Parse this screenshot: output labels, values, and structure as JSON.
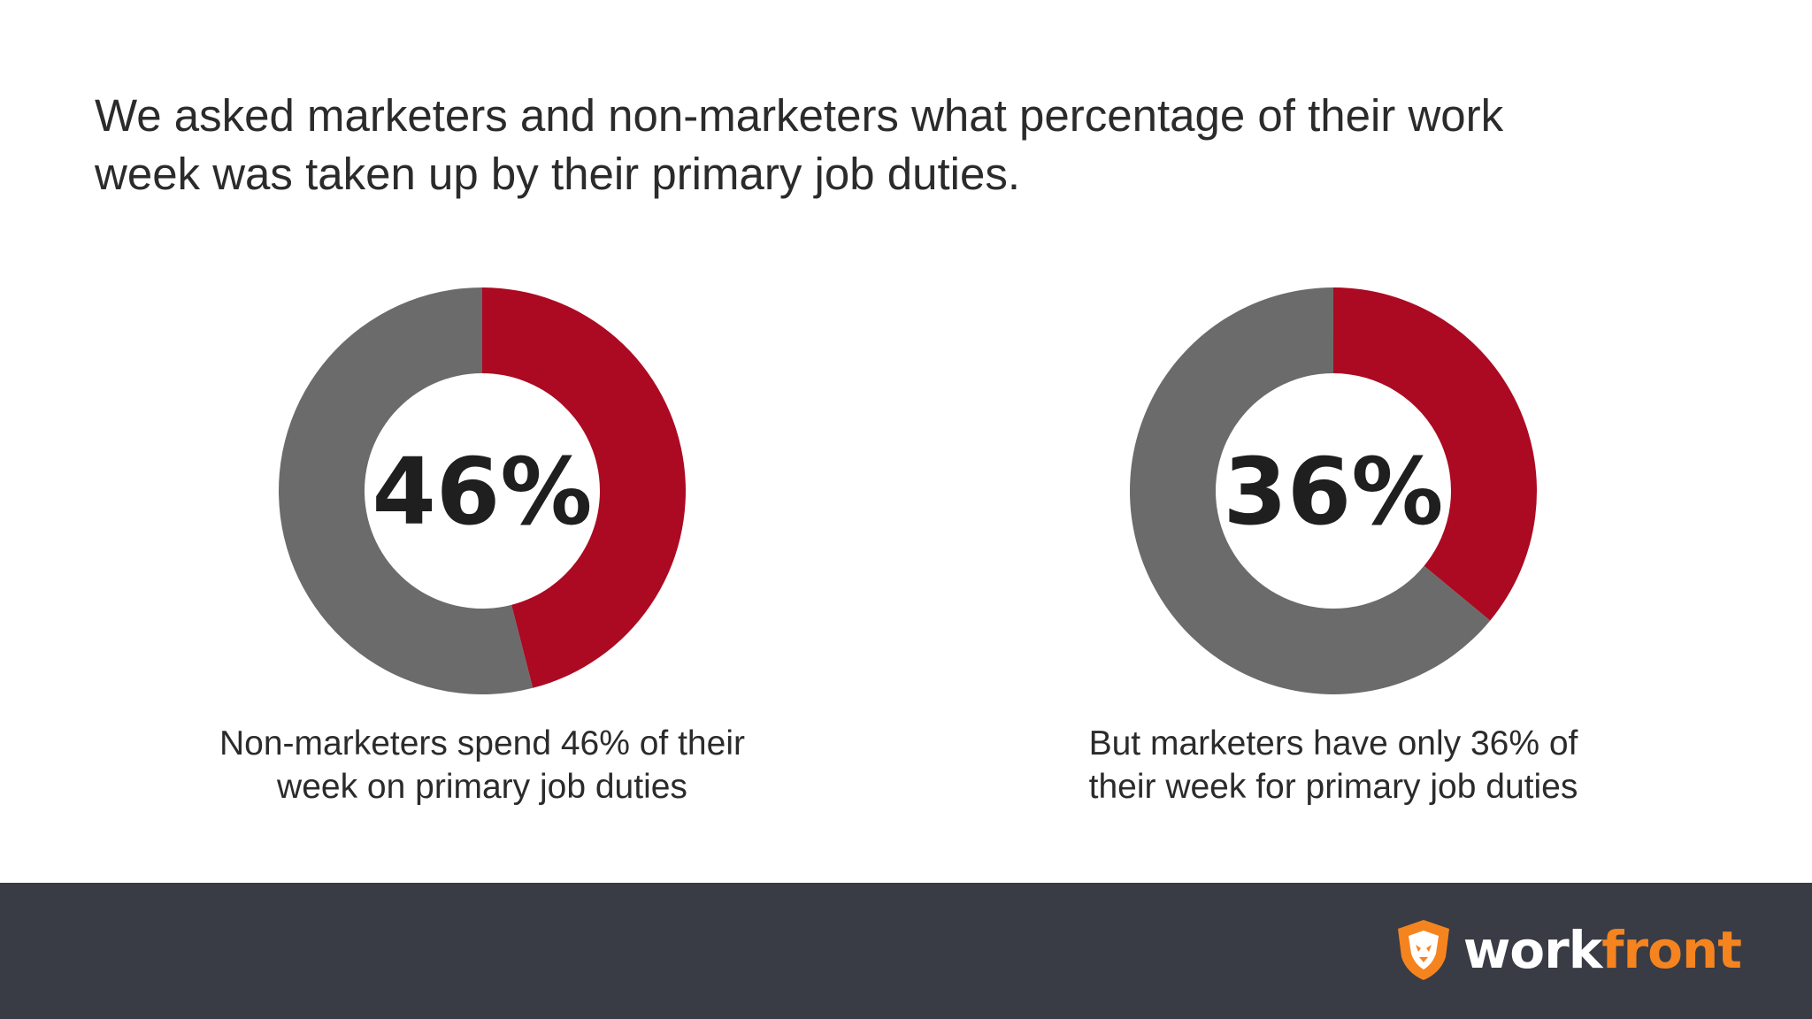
{
  "headline": {
    "line1": "We asked marketers and non-marketers what percentage of their work",
    "line2": "week was taken up by their primary job duties."
  },
  "colors": {
    "highlight": "#ab0a22",
    "remainder": "#6b6b6b",
    "footer": "#393b45",
    "brand_orange": "#f5841f"
  },
  "chart_data": [
    {
      "type": "pie",
      "donut": true,
      "series": [
        {
          "values": [
            46,
            54
          ]
        }
      ],
      "center_label": "46%",
      "caption_line1": "Non-marketers spend 46% of their",
      "caption_line2": "week on primary job duties"
    },
    {
      "type": "pie",
      "donut": true,
      "series": [
        {
          "values": [
            36,
            64
          ]
        }
      ],
      "center_label": "36%",
      "caption_line1": "But marketers have only 36% of",
      "caption_line2": "their week for primary job duties"
    }
  ],
  "footer": {
    "logo_part1": "work",
    "logo_part2": "front",
    "logo_icon": "lion-shield-icon"
  }
}
